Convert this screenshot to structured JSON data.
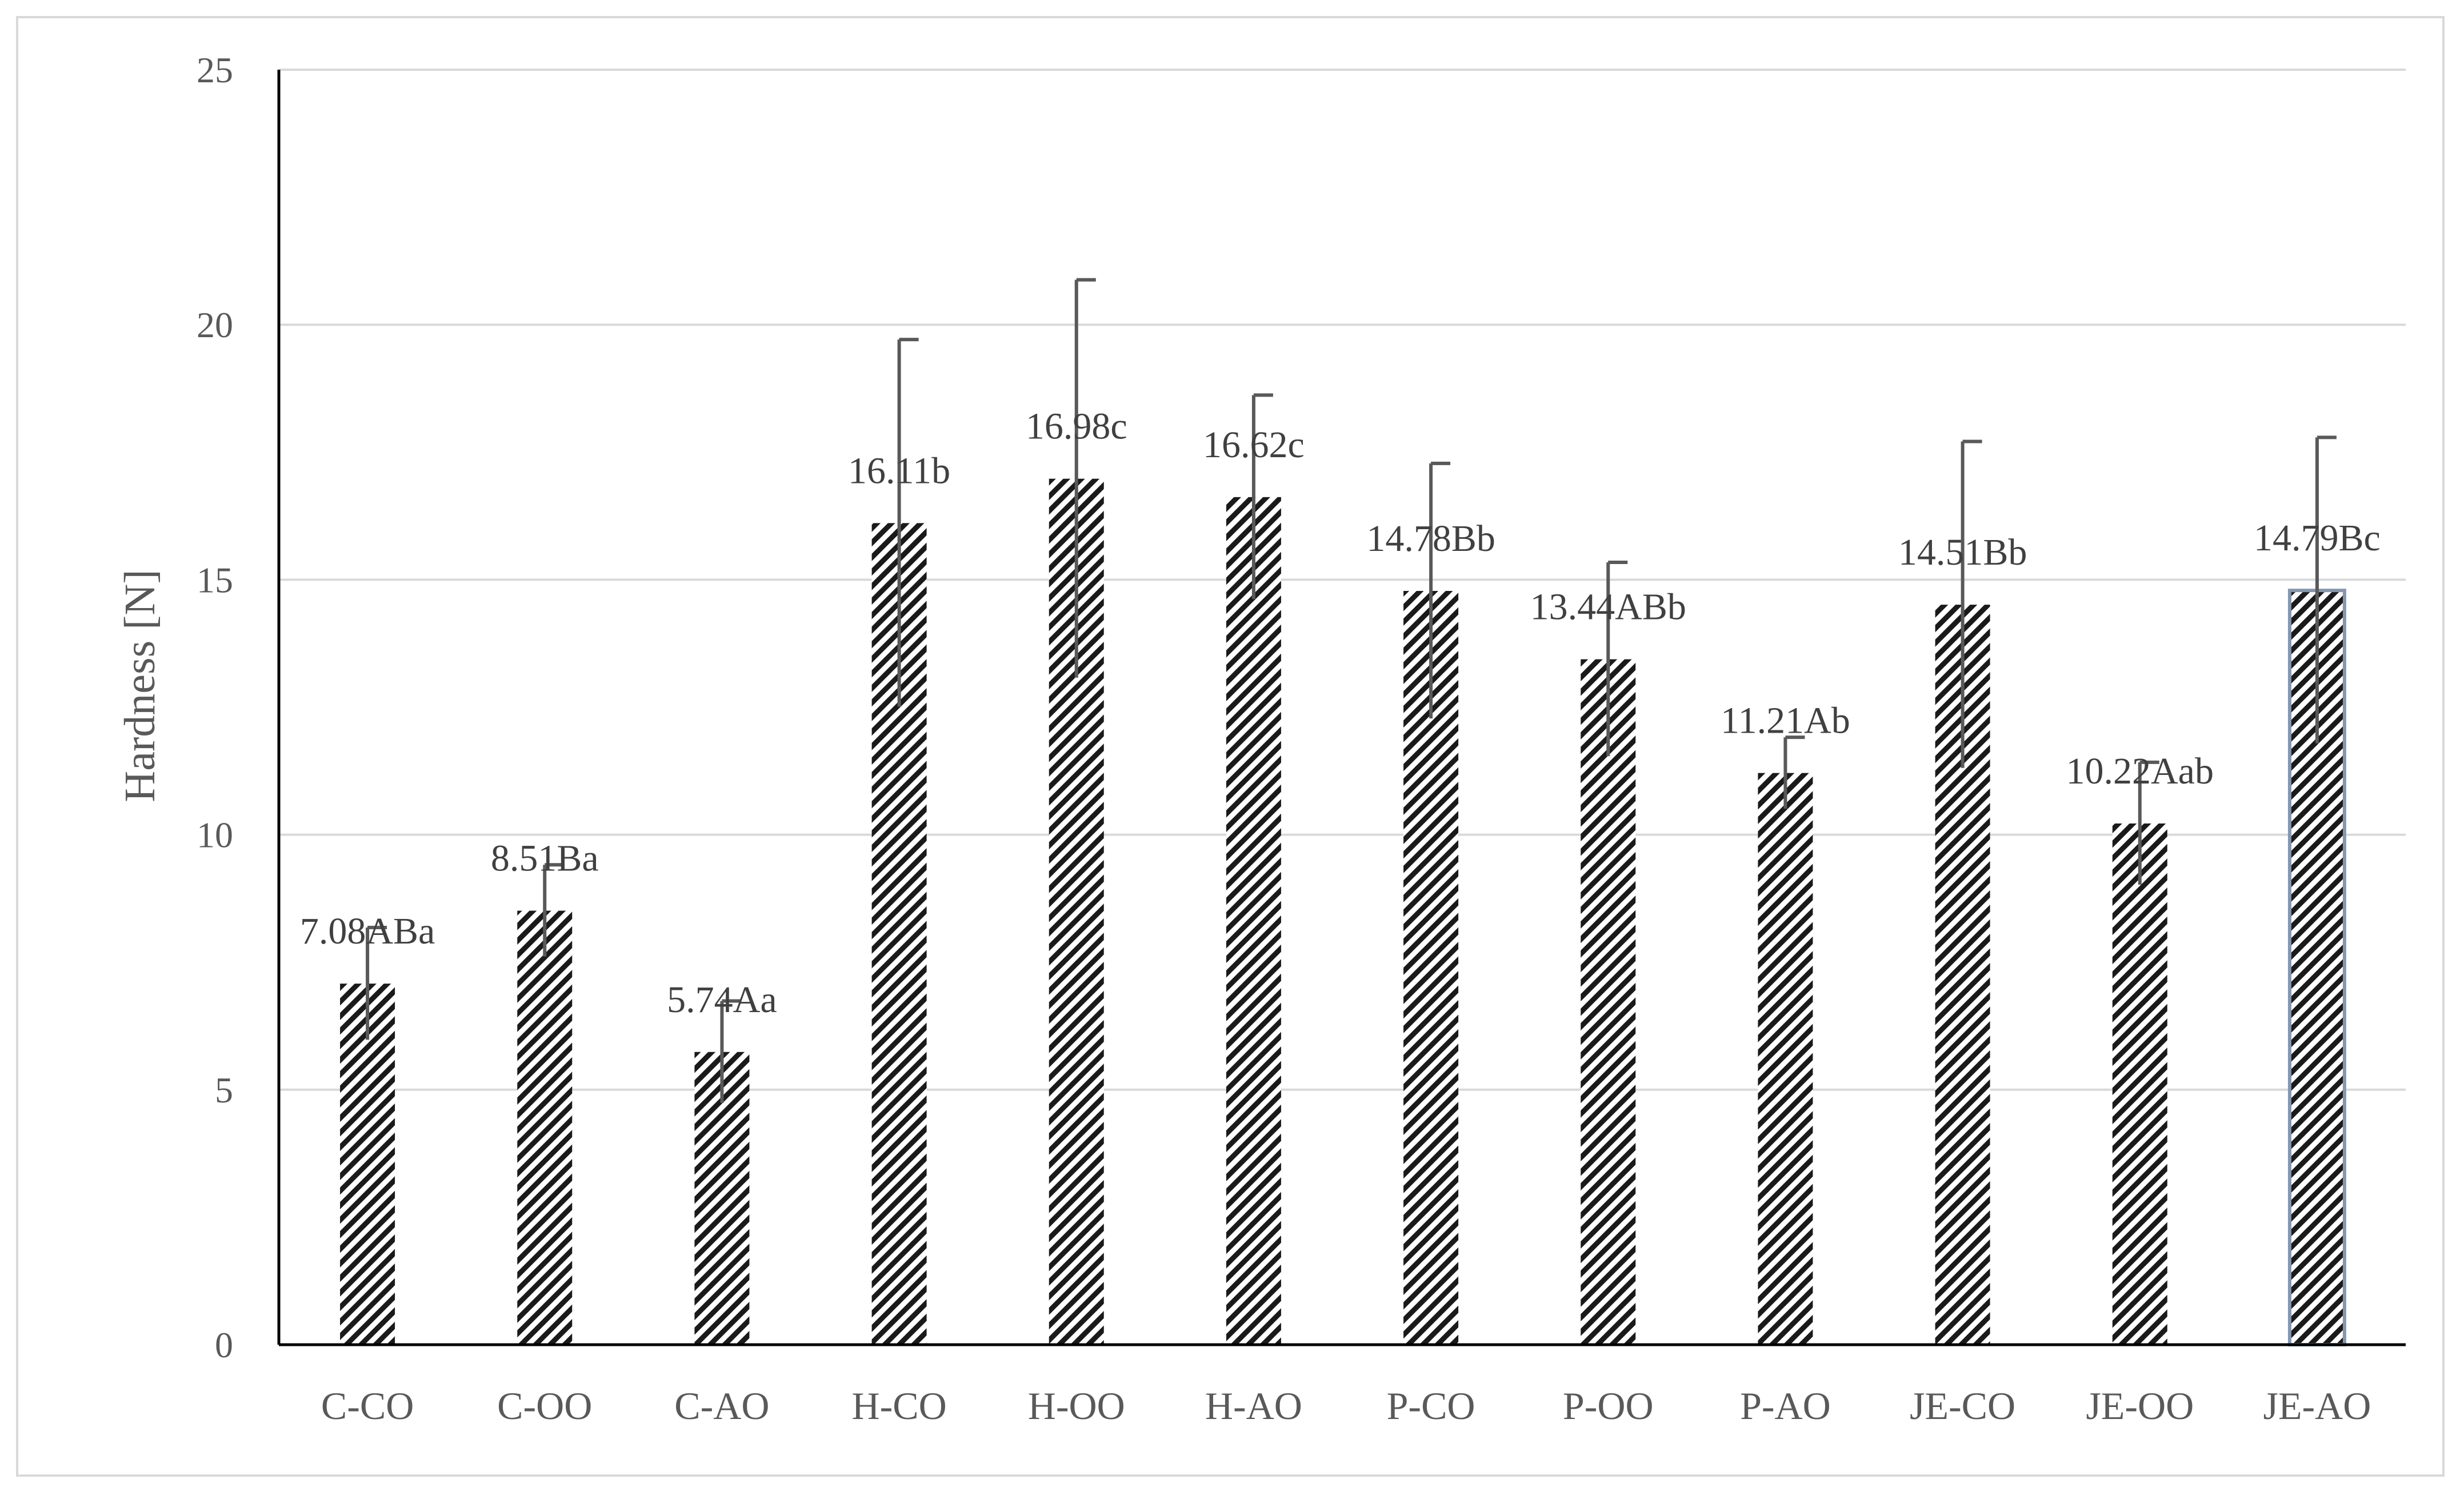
{
  "chart_data": {
    "type": "bar",
    "title": "",
    "xlabel": "",
    "ylabel": "Hardness [N]",
    "ylim": [
      0,
      25
    ],
    "yticks": [
      0,
      5,
      10,
      15,
      20,
      25
    ],
    "grid": true,
    "legend": "none",
    "categories": [
      "C-CO",
      "C-OO",
      "C-AO",
      "H-CO",
      "H-OO",
      "H-AO",
      "P-CO",
      "P-OO",
      "P-AO",
      "JE-CO",
      "JE-OO",
      "JE-AO"
    ],
    "values": [
      7.08,
      8.51,
      5.74,
      16.11,
      16.98,
      16.62,
      14.78,
      13.44,
      11.21,
      14.51,
      10.22,
      14.79
    ],
    "errors": [
      1.1,
      0.9,
      1.0,
      3.6,
      3.9,
      2.0,
      2.5,
      1.9,
      0.7,
      3.2,
      1.2,
      3.0
    ],
    "data_labels": [
      "7.08ABa",
      "8.51Ba",
      "5.74Aa",
      "16.11b",
      "16.98c",
      "16.62c",
      "14.78Bb",
      "13.44ABb",
      "11.21Ab",
      "14.51Bb",
      "10.22Aab",
      "14.79Bc"
    ],
    "colors": {
      "bar_pattern_dark": "#1a1a1a",
      "bar_pattern_light": "#ffffff",
      "gridline": "#d9d9d9",
      "axis": "#000000",
      "error_bar": "#595959",
      "highlight_border": "#8497b0"
    }
  }
}
